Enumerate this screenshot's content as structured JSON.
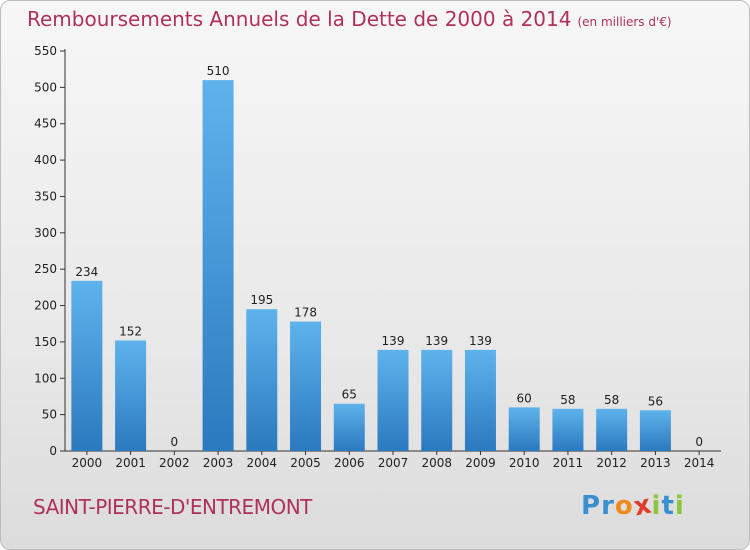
{
  "title": "Remboursements Annuels de la Dette de 2000 à 2014",
  "unit": "(en milliers d'€)",
  "place": "SAINT-PIERRE-D'ENTREMONT",
  "logo": {
    "letters": [
      "P",
      "r",
      "o",
      "x",
      "i",
      "t",
      "i"
    ],
    "colors": [
      "#3a8fd0",
      "#3a8fd0",
      "#f08a1c",
      "#e23c2c",
      "#8cc63f",
      "#3a8fd0",
      "#8cc63f"
    ]
  },
  "colors": {
    "bar_top": "#5eb3ec",
    "bar_bottom": "#2b79bf",
    "accent": "#b0305c"
  },
  "chart_data": {
    "type": "bar",
    "title": "Remboursements Annuels de la Dette de 2000 à 2014",
    "categories": [
      "2000",
      "2001",
      "2002",
      "2003",
      "2004",
      "2005",
      "2006",
      "2007",
      "2008",
      "2009",
      "2010",
      "2011",
      "2012",
      "2013",
      "2014"
    ],
    "values": [
      234,
      152,
      0,
      510,
      195,
      178,
      65,
      139,
      139,
      139,
      60,
      58,
      58,
      56,
      0
    ],
    "ylim": [
      0,
      550
    ],
    "yticks": [
      0,
      50,
      100,
      150,
      200,
      250,
      300,
      350,
      400,
      450,
      500,
      550
    ],
    "grid": false,
    "xlabel": "",
    "ylabel": ""
  }
}
